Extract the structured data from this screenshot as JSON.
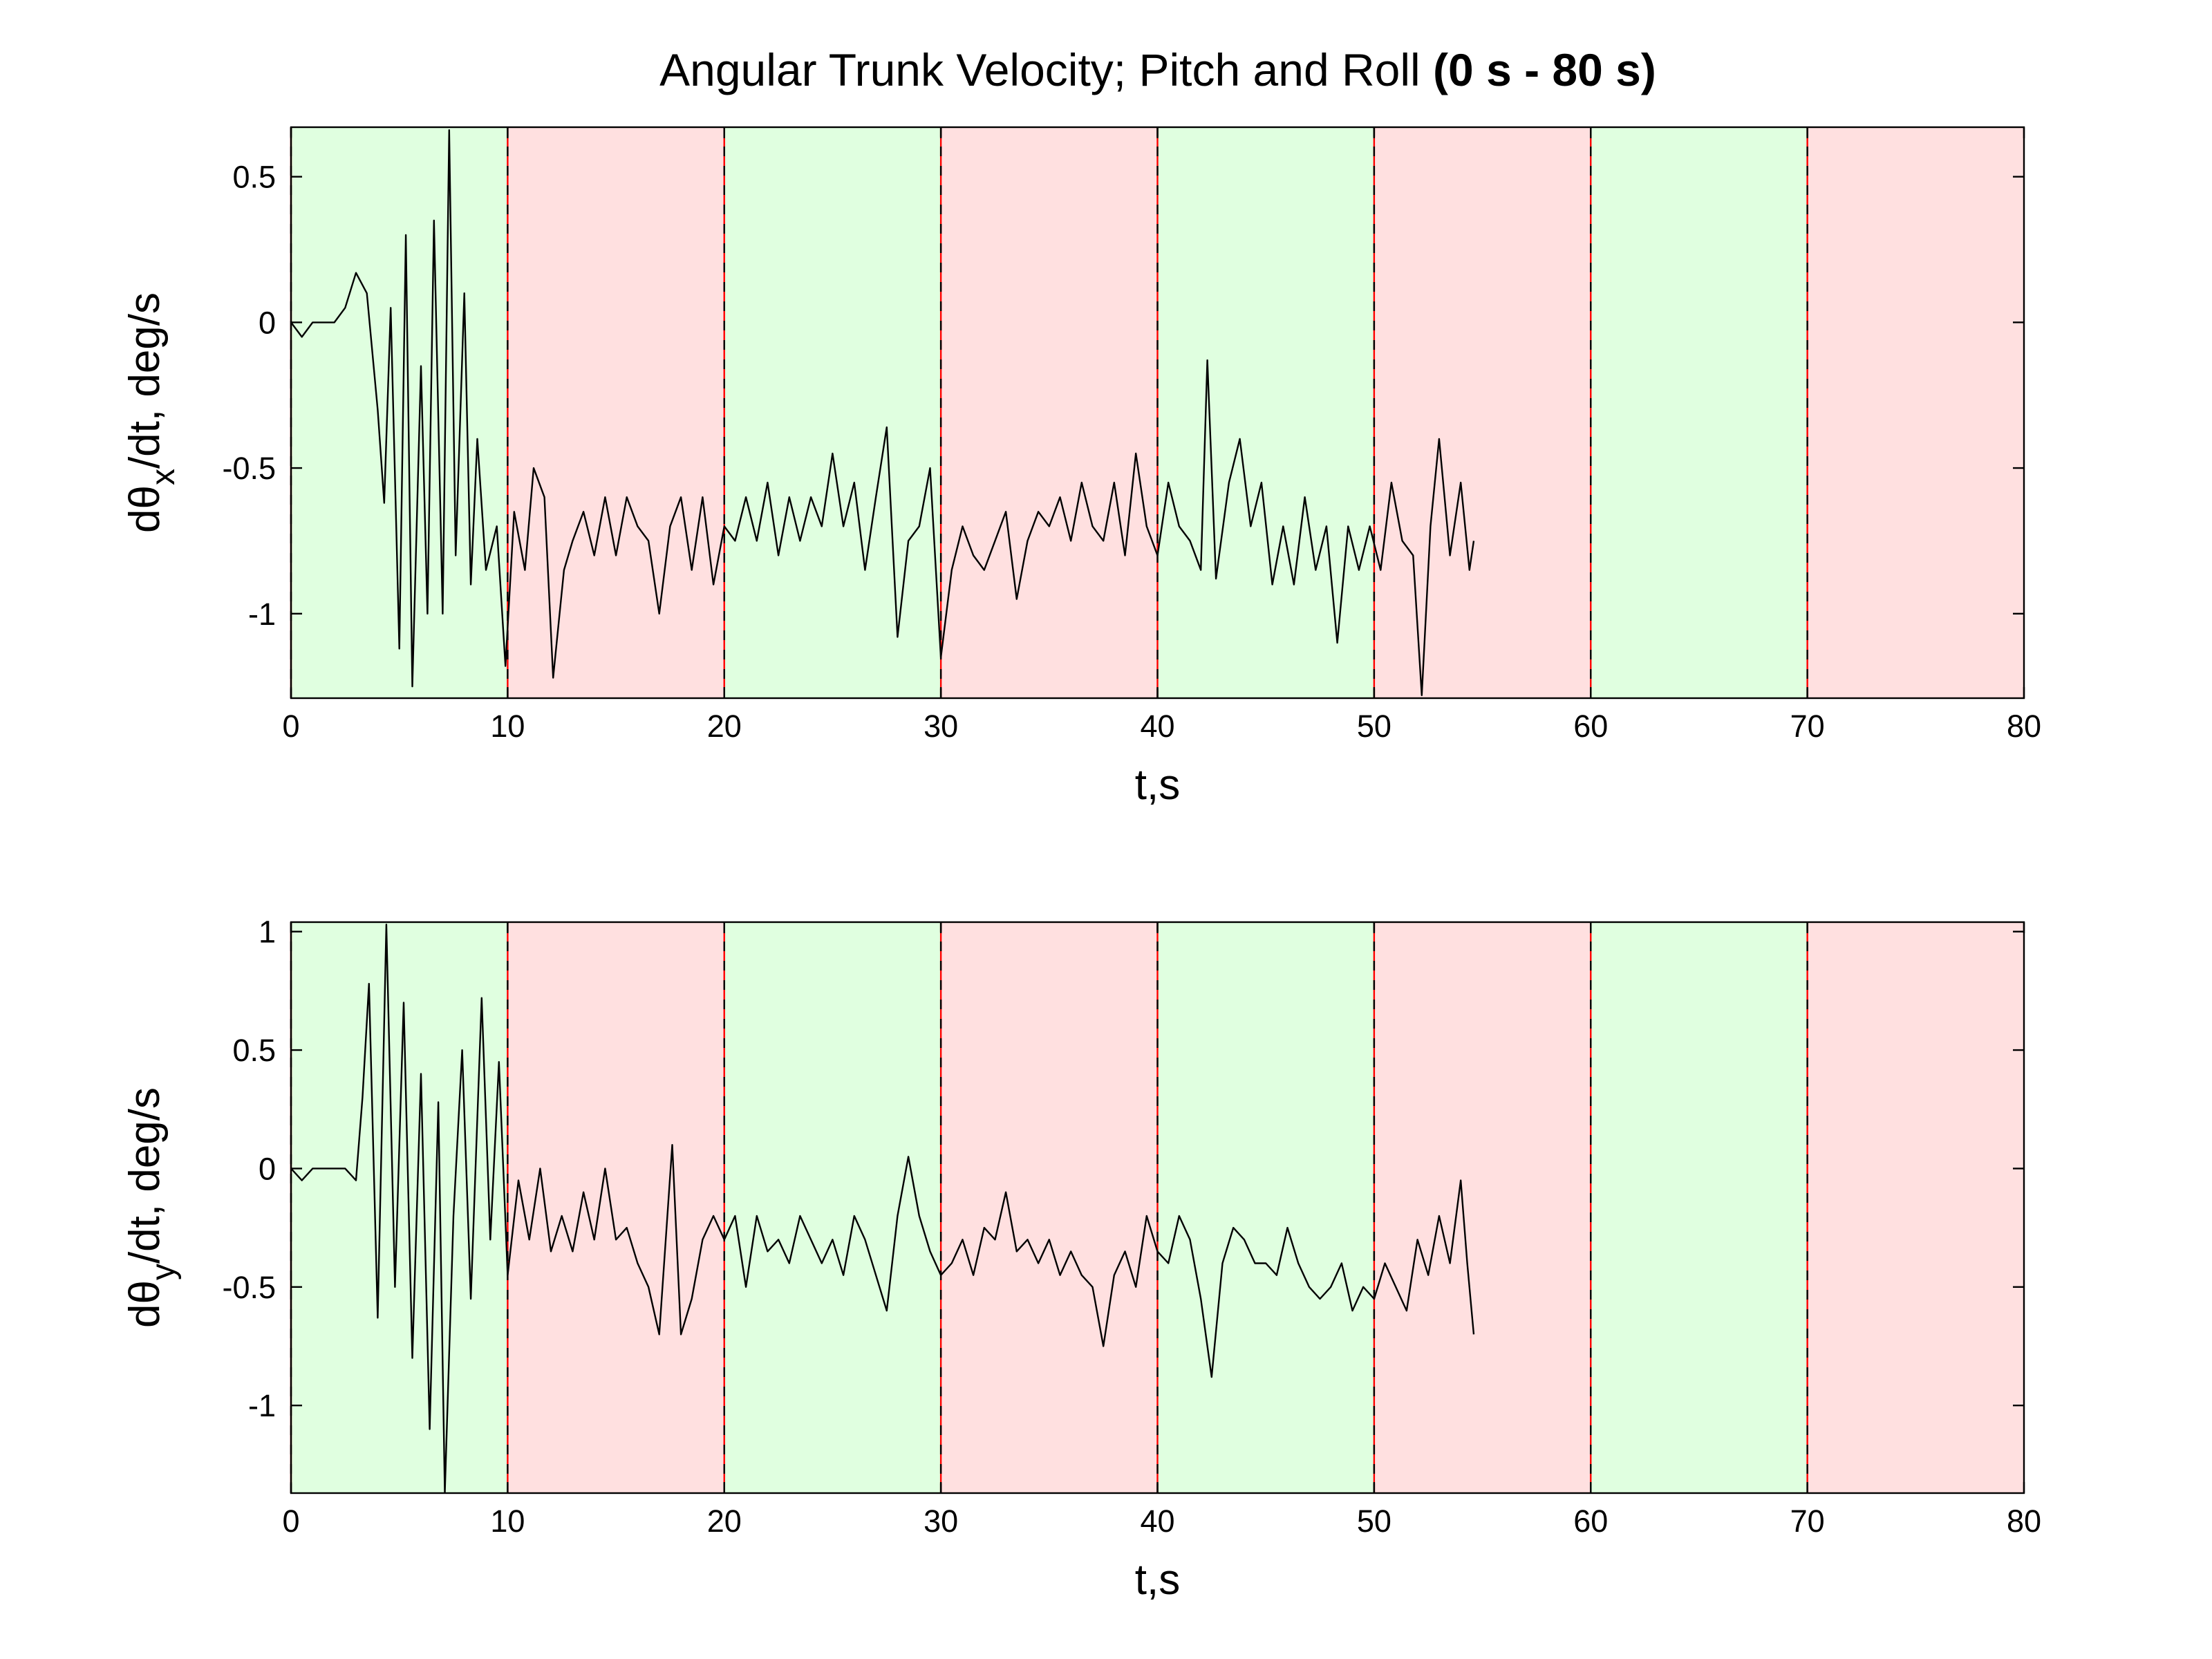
{
  "chart_data": [
    {
      "type": "line",
      "title": "Angular Trunk Velocity; Pitch and Roll",
      "title_range": "(0 s - 80 s)",
      "ylabel": "dθ",
      "ylabel_sub": "x",
      "ylabel_rest": "/dt, deg/s",
      "xlabel": "t,s",
      "color": "#000000",
      "xlim": [
        0,
        80
      ],
      "xticks": [
        0,
        10,
        20,
        30,
        40,
        50,
        60,
        70,
        80
      ],
      "ylim": [
        -1.29,
        0.67
      ],
      "yticks": [
        -1,
        -0.5,
        0,
        0.5
      ],
      "bands": [
        {
          "start": 0,
          "end": 10,
          "color": "#e0ffe0"
        },
        {
          "start": 10,
          "end": 20,
          "color": "#ffe0e0"
        },
        {
          "start": 20,
          "end": 30,
          "color": "#e0ffe0"
        },
        {
          "start": 30,
          "end": 40,
          "color": "#ffe0e0"
        },
        {
          "start": 40,
          "end": 50,
          "color": "#e0ffe0"
        },
        {
          "start": 50,
          "end": 60,
          "color": "#ffe0e0"
        },
        {
          "start": 60,
          "end": 70,
          "color": "#e0ffe0"
        },
        {
          "start": 70,
          "end": 80,
          "color": "#ffe0e0"
        }
      ],
      "x": [
        0,
        0.5,
        1,
        1.5,
        2,
        2.5,
        3,
        3.5,
        4,
        4.3,
        4.6,
        5,
        5.3,
        5.6,
        6,
        6.3,
        6.6,
        7,
        7.3,
        7.6,
        8,
        8.3,
        8.6,
        9,
        9.5,
        9.9,
        10.3,
        10.8,
        11.2,
        11.7,
        12.1,
        12.6,
        13,
        13.5,
        14,
        14.5,
        15,
        15.5,
        16,
        16.5,
        17,
        17.5,
        18,
        18.5,
        19,
        19.5,
        20,
        20.5,
        21,
        21.5,
        22,
        22.5,
        23,
        23.5,
        24,
        24.5,
        25,
        25.5,
        26,
        26.5,
        27,
        27.5,
        28,
        28.5,
        29,
        29.5,
        30,
        30.5,
        31,
        31.5,
        32,
        32.5,
        33,
        33.5,
        34,
        34.5,
        35,
        35.5,
        36,
        36.5,
        37,
        37.5,
        38,
        38.5,
        39,
        39.5,
        40,
        40.5,
        41,
        41.5,
        42,
        42.3,
        42.7,
        43.3,
        43.8,
        44.3,
        44.8,
        45.3,
        45.8,
        46.3,
        46.8,
        47.3,
        47.8,
        48.3,
        48.8,
        49.3,
        49.8,
        50.3,
        50.8,
        51.3,
        51.8,
        52.2,
        52.6,
        53,
        53.5,
        54,
        54.4,
        54.6
      ],
      "values": [
        0,
        -0.05,
        0,
        0,
        0,
        0.05,
        0.17,
        0.1,
        -0.3,
        -0.62,
        0.05,
        -1.12,
        0.3,
        -1.25,
        -0.15,
        -1.0,
        0.35,
        -1.0,
        0.66,
        -0.8,
        0.1,
        -0.9,
        -0.4,
        -0.85,
        -0.7,
        -1.18,
        -0.65,
        -0.85,
        -0.5,
        -0.6,
        -1.22,
        -0.85,
        -0.75,
        -0.65,
        -0.8,
        -0.6,
        -0.8,
        -0.6,
        -0.7,
        -0.75,
        -1.0,
        -0.7,
        -0.6,
        -0.85,
        -0.6,
        -0.9,
        -0.7,
        -0.75,
        -0.6,
        -0.75,
        -0.55,
        -0.8,
        -0.6,
        -0.75,
        -0.6,
        -0.7,
        -0.45,
        -0.7,
        -0.55,
        -0.85,
        -0.6,
        -0.36,
        -1.08,
        -0.75,
        -0.7,
        -0.5,
        -1.15,
        -0.85,
        -0.7,
        -0.8,
        -0.85,
        -0.75,
        -0.65,
        -0.95,
        -0.75,
        -0.65,
        -0.7,
        -0.6,
        -0.75,
        -0.55,
        -0.7,
        -0.75,
        -0.55,
        -0.8,
        -0.45,
        -0.7,
        -0.8,
        -0.55,
        -0.7,
        -0.75,
        -0.85,
        -0.13,
        -0.88,
        -0.55,
        -0.4,
        -0.7,
        -0.55,
        -0.9,
        -0.7,
        -0.9,
        -0.6,
        -0.85,
        -0.7,
        -1.1,
        -0.7,
        -0.85,
        -0.7,
        -0.85,
        -0.55,
        -0.75,
        -0.8,
        -1.28,
        -0.7,
        -0.4,
        -0.8,
        -0.55,
        -0.85,
        -0.75
      ]
    },
    {
      "type": "line",
      "ylabel": "dθ",
      "ylabel_sub": "y",
      "ylabel_rest": "/dt, deg/s",
      "xlabel": "t,s",
      "color": "#000000",
      "xlim": [
        0,
        80
      ],
      "xticks": [
        0,
        10,
        20,
        30,
        40,
        50,
        60,
        70,
        80
      ],
      "ylim": [
        -1.37,
        1.04
      ],
      "yticks": [
        -1,
        -0.5,
        0,
        0.5,
        1
      ],
      "bands": [
        {
          "start": 0,
          "end": 10,
          "color": "#e0ffe0"
        },
        {
          "start": 10,
          "end": 20,
          "color": "#ffe0e0"
        },
        {
          "start": 20,
          "end": 30,
          "color": "#e0ffe0"
        },
        {
          "start": 30,
          "end": 40,
          "color": "#ffe0e0"
        },
        {
          "start": 40,
          "end": 50,
          "color": "#e0ffe0"
        },
        {
          "start": 50,
          "end": 60,
          "color": "#ffe0e0"
        },
        {
          "start": 60,
          "end": 70,
          "color": "#e0ffe0"
        },
        {
          "start": 70,
          "end": 80,
          "color": "#ffe0e0"
        }
      ],
      "x": [
        0,
        0.5,
        1,
        2,
        2.5,
        3,
        3.3,
        3.6,
        4,
        4.4,
        4.8,
        5.2,
        5.6,
        6,
        6.4,
        6.8,
        7.1,
        7.5,
        7.9,
        8.3,
        8.8,
        9.2,
        9.6,
        10,
        10.5,
        11,
        11.5,
        12,
        12.5,
        13,
        13.5,
        14,
        14.5,
        15,
        15.5,
        16,
        16.5,
        17,
        17.3,
        17.6,
        18,
        18.5,
        19,
        19.5,
        20,
        20.5,
        21,
        21.5,
        22,
        22.5,
        23,
        23.5,
        24,
        24.5,
        25,
        25.5,
        26,
        26.5,
        27,
        27.5,
        28,
        28.5,
        29,
        29.5,
        30,
        30.5,
        31,
        31.5,
        32,
        32.5,
        33,
        33.5,
        34,
        34.5,
        35,
        35.5,
        36,
        36.5,
        37,
        37.5,
        38,
        38.5,
        39,
        39.5,
        40,
        40.5,
        41,
        41.5,
        42,
        42.5,
        43,
        43.5,
        44,
        44.5,
        45,
        45.5,
        46,
        46.5,
        47,
        47.5,
        48,
        48.5,
        49,
        49.5,
        50,
        50.5,
        51,
        51.5,
        52,
        52.5,
        53,
        53.5,
        54,
        54.3,
        54.6
      ],
      "values": [
        0,
        -0.05,
        0,
        0,
        0,
        -0.05,
        0.3,
        0.78,
        -0.63,
        1.03,
        -0.5,
        0.7,
        -0.8,
        0.4,
        -1.1,
        0.28,
        -1.37,
        -0.2,
        0.5,
        -0.55,
        0.72,
        -0.3,
        0.45,
        -0.45,
        -0.05,
        -0.3,
        0,
        -0.35,
        -0.2,
        -0.35,
        -0.1,
        -0.3,
        0,
        -0.3,
        -0.25,
        -0.4,
        -0.5,
        -0.7,
        -0.3,
        0.1,
        -0.7,
        -0.55,
        -0.3,
        -0.2,
        -0.3,
        -0.2,
        -0.5,
        -0.2,
        -0.35,
        -0.3,
        -0.4,
        -0.2,
        -0.3,
        -0.4,
        -0.3,
        -0.45,
        -0.2,
        -0.3,
        -0.45,
        -0.6,
        -0.2,
        0.05,
        -0.2,
        -0.35,
        -0.45,
        -0.4,
        -0.3,
        -0.45,
        -0.25,
        -0.3,
        -0.1,
        -0.35,
        -0.3,
        -0.4,
        -0.3,
        -0.45,
        -0.35,
        -0.45,
        -0.5,
        -0.75,
        -0.45,
        -0.35,
        -0.5,
        -0.2,
        -0.35,
        -0.4,
        -0.2,
        -0.3,
        -0.55,
        -0.88,
        -0.4,
        -0.25,
        -0.3,
        -0.4,
        -0.4,
        -0.45,
        -0.25,
        -0.4,
        -0.5,
        -0.55,
        -0.5,
        -0.4,
        -0.6,
        -0.5,
        -0.55,
        -0.4,
        -0.5,
        -0.6,
        -0.3,
        -0.45,
        -0.2,
        -0.4,
        -0.05,
        -0.4,
        -0.7
      ]
    }
  ]
}
